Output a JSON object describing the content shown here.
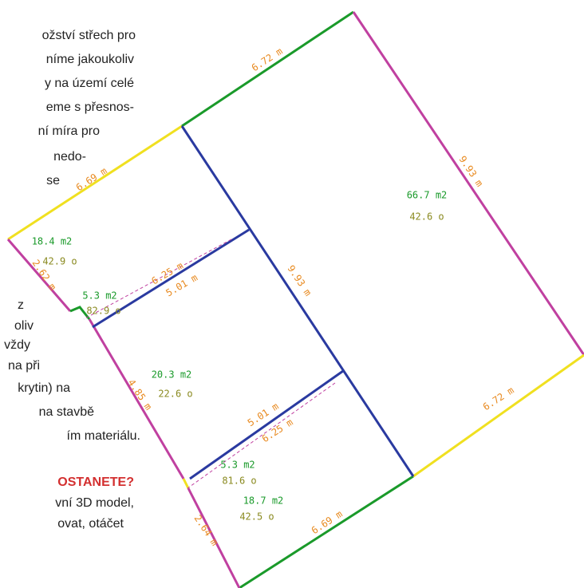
{
  "text_lines": [
    "ožství střech pro",
    "níme jakoukoliv",
    "y na území celé",
    "eme s přesnos-",
    "ní míra pro",
    "nedo-",
    "se",
    "z",
    "oliv",
    "vždy",
    "na při",
    "krytin) na",
    "na stavbě",
    "ím materiálu."
  ],
  "heading": "OSTANETE?",
  "after_lines": [
    "vní 3D model,",
    "ovat, otáčet"
  ],
  "labels": [
    "6.72 m",
    "6.69 m",
    "9.93 m",
    "66.7 m2",
    "42.6 o",
    "18.4 m2",
    "42.9 o",
    "2.62 m",
    "6.25 m",
    "5.01 m",
    "5.3 m2",
    "82.9 o",
    "9.93 m",
    "20.3 m2",
    "22.6 o",
    "4.85 m",
    "5.01 m",
    "6.25 m",
    "5.3 m2",
    "81.6 o",
    "6.72 m",
    "18.7 m2",
    "42.5 o",
    "6.69 m",
    "2.64 m"
  ]
}
